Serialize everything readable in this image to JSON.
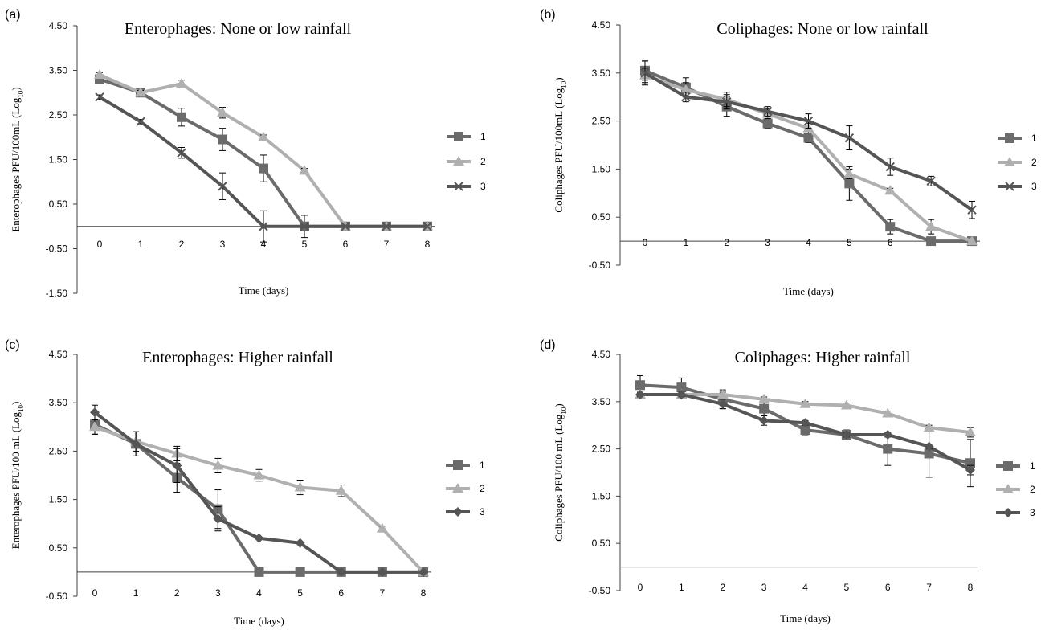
{
  "chart_data": [
    {
      "panel_label": "(a)",
      "type": "line",
      "title": "Enterophages: None or low rainfall",
      "xlabel": "Time (days)",
      "ylabel": "Enterophages PFU/100mL (Log",
      "ylabel_sub": "10",
      "ylabel_end": ")",
      "x": [
        0,
        1,
        2,
        3,
        4,
        5,
        6,
        7,
        8
      ],
      "ylim": [
        -1.5,
        4.5
      ],
      "yticks": [
        "4.50",
        "3.50",
        "2.50",
        "1.50",
        "0.50",
        "-0.50",
        "-1.50"
      ],
      "grid": false,
      "legend_position": "right",
      "series": [
        {
          "name": "1",
          "color": "#6b6b6b",
          "marker": "square",
          "values": [
            3.3,
            3.0,
            2.45,
            1.95,
            1.3,
            0,
            0,
            0,
            0
          ],
          "errors": [
            0.05,
            0.05,
            0.2,
            0.25,
            0.3,
            0.25,
            0,
            0,
            0
          ]
        },
        {
          "name": "2",
          "color": "#b0b0b0",
          "marker": "triangle",
          "values": [
            3.4,
            3.0,
            3.2,
            2.55,
            2.0,
            1.25,
            0,
            0,
            0
          ],
          "errors": [
            0.05,
            0.05,
            0.08,
            0.12,
            0.05,
            0.05,
            0,
            0,
            0
          ]
        },
        {
          "name": "3",
          "color": "#555555",
          "marker": "x",
          "values": [
            2.9,
            2.35,
            1.65,
            0.9,
            0,
            0,
            0,
            0,
            0
          ],
          "errors": [
            0.05,
            0.05,
            0.12,
            0.3,
            0.35,
            0,
            0,
            0,
            0
          ]
        }
      ]
    },
    {
      "panel_label": "(b)",
      "type": "line",
      "title": "Coliphages: None or low rainfall",
      "xlabel": "Time (days)",
      "ylabel": "Coliphages PFU/100mL (Log",
      "ylabel_sub": "10",
      "ylabel_end": ")",
      "x": [
        0,
        1,
        2,
        3,
        4,
        5,
        6,
        7,
        8
      ],
      "ylim": [
        -0.5,
        4.5
      ],
      "yticks": [
        "4.50",
        "3.50",
        "2.50",
        "1.50",
        "0.50",
        "-0.50"
      ],
      "grid": false,
      "legend_position": "right",
      "series": [
        {
          "name": "1",
          "color": "#6b6b6b",
          "marker": "square",
          "values": [
            3.55,
            3.2,
            2.8,
            2.45,
            2.15,
            1.2,
            0.3,
            0,
            0
          ],
          "errors": [
            0.2,
            0.2,
            0.2,
            0.1,
            0.1,
            0.35,
            0.15,
            0,
            0
          ]
        },
        {
          "name": "2",
          "color": "#b0b0b0",
          "marker": "triangle",
          "values": [
            3.45,
            3.15,
            2.95,
            2.65,
            2.35,
            1.4,
            1.05,
            0.3,
            0.0
          ],
          "errors": [
            0.15,
            0.15,
            0.15,
            0.1,
            0.1,
            0.1,
            0.05,
            0.15,
            0
          ]
        },
        {
          "name": "3",
          "color": "#555555",
          "marker": "x",
          "values": [
            3.5,
            3.0,
            2.9,
            2.7,
            2.5,
            2.15,
            1.55,
            1.25,
            0.65
          ],
          "errors": [
            0.25,
            0.1,
            0.15,
            0.1,
            0.15,
            0.25,
            0.18,
            0.1,
            0.18
          ]
        }
      ]
    },
    {
      "panel_label": "(c)",
      "type": "line",
      "title": "Enterophages: Higher rainfall",
      "xlabel": "Time (days)",
      "ylabel": "Enterophages PFU/100 mL (Log",
      "ylabel_sub": "10",
      "ylabel_end": ")",
      "x": [
        0,
        1,
        2,
        3,
        4,
        5,
        6,
        7,
        8
      ],
      "ylim": [
        -0.5,
        4.5
      ],
      "yticks": [
        "4.50",
        "3.50",
        "2.50",
        "1.50",
        "0.50",
        "-0.50"
      ],
      "grid": false,
      "legend_position": "right",
      "series": [
        {
          "name": "1",
          "color": "#6b6b6b",
          "marker": "square",
          "values": [
            3.05,
            2.65,
            1.95,
            1.3,
            0,
            0,
            0,
            0,
            0
          ],
          "errors": [
            0.2,
            0.25,
            0.3,
            0.4,
            0,
            0,
            0,
            0,
            0
          ]
        },
        {
          "name": "2",
          "color": "#b0b0b0",
          "marker": "triangle",
          "values": [
            3.0,
            2.7,
            2.45,
            2.2,
            2.0,
            1.75,
            1.68,
            0.9,
            0.0
          ],
          "errors": [
            0.15,
            0.2,
            0.15,
            0.15,
            0.12,
            0.15,
            0.12,
            0.05,
            0
          ]
        },
        {
          "name": "3",
          "color": "#555555",
          "marker": "diamond",
          "values": [
            3.3,
            2.65,
            2.2,
            1.1,
            0.7,
            0.6,
            0,
            0,
            0
          ],
          "errors": [
            0.15,
            0.25,
            0.35,
            0.25,
            0,
            0,
            0,
            0,
            0
          ]
        }
      ]
    },
    {
      "panel_label": "(d)",
      "type": "line",
      "title": "Coliphages: Higher rainfall",
      "xlabel": "Time (days)",
      "ylabel": "Coliphages PFU/100 mL (Log",
      "ylabel_sub": "10",
      "ylabel_end": ")",
      "x": [
        0,
        1,
        2,
        3,
        4,
        5,
        6,
        7,
        8
      ],
      "ylim": [
        -0.5,
        4.5
      ],
      "yticks": [
        "4.50",
        "3.50",
        "2.50",
        "1.50",
        "0.50",
        "-0.50"
      ],
      "grid": false,
      "legend_position": "right",
      "series": [
        {
          "name": "1",
          "color": "#6b6b6b",
          "marker": "square",
          "values": [
            3.85,
            3.8,
            3.55,
            3.35,
            2.9,
            2.8,
            2.5,
            2.4,
            2.2
          ],
          "errors": [
            0.2,
            0.2,
            0.2,
            0.15,
            0.1,
            0.1,
            0.35,
            0.5,
            0.5
          ]
        },
        {
          "name": "2",
          "color": "#b0b0b0",
          "marker": "triangle",
          "values": [
            3.65,
            3.65,
            3.65,
            3.55,
            3.45,
            3.42,
            3.25,
            2.95,
            2.85
          ],
          "errors": [
            0.05,
            0.05,
            0.05,
            0.05,
            0.05,
            0.05,
            0.05,
            0.05,
            0.1
          ]
        },
        {
          "name": "3",
          "color": "#555555",
          "marker": "diamond",
          "values": [
            3.65,
            3.65,
            3.45,
            3.1,
            3.05,
            2.8,
            2.8,
            2.55,
            2.05
          ],
          "errors": [
            0.05,
            0.05,
            0.1,
            0.1,
            0.05,
            0.05,
            0.05,
            0.05,
            0.1
          ]
        }
      ]
    }
  ]
}
